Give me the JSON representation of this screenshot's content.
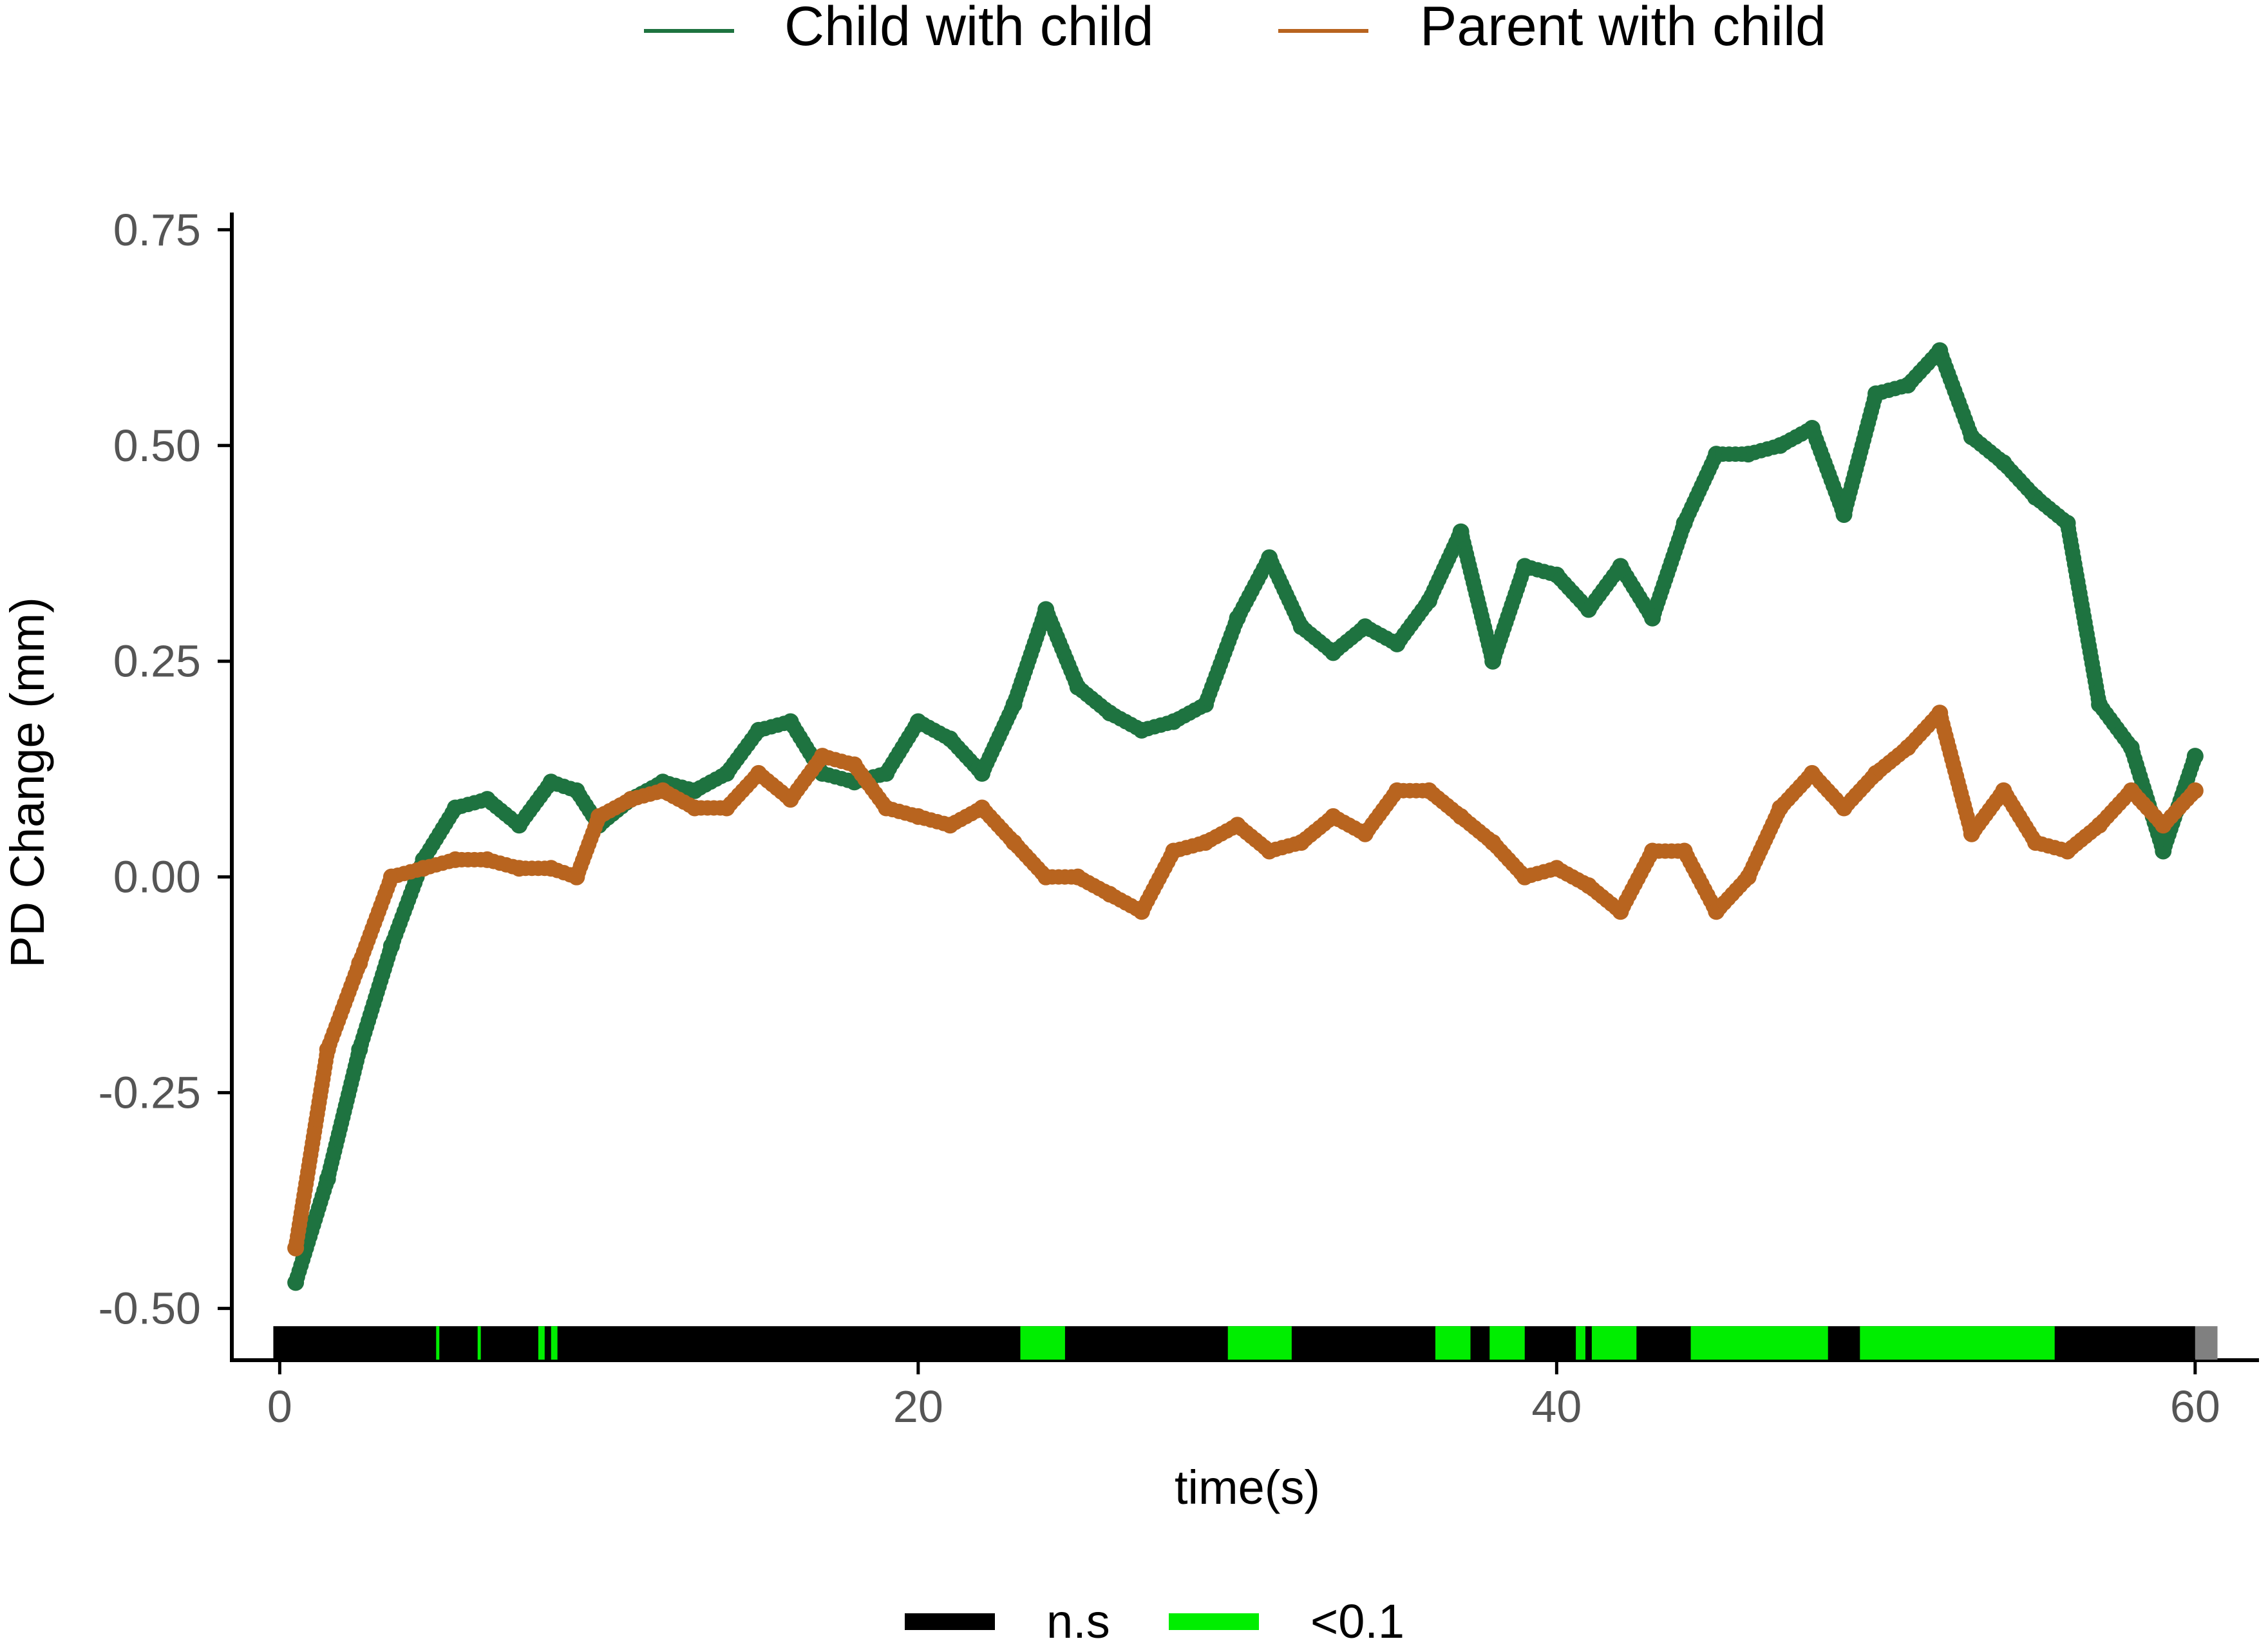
{
  "chart_data": {
    "type": "scatter",
    "title": "",
    "xlabel": "time(s)",
    "ylabel": "PD Change (mm)",
    "xlim": [
      -1.5,
      62
    ],
    "ylim": [
      -0.56,
      0.77
    ],
    "x_ticks": [
      0,
      20,
      40,
      60
    ],
    "y_ticks": [
      -0.5,
      -0.25,
      0.0,
      0.25,
      0.5,
      0.75
    ],
    "y_tick_labels": [
      "-0.50",
      "-0.25",
      "0.00",
      "0.25",
      "0.50",
      "0.75"
    ],
    "grid": false,
    "legend_position": "top",
    "series": [
      {
        "name": "Child with child",
        "color": "#1e7340",
        "points": [
          [
            0.5,
            -0.47
          ],
          [
            1.5,
            -0.35
          ],
          [
            2.5,
            -0.2
          ],
          [
            3.5,
            -0.08
          ],
          [
            4.5,
            0.02
          ],
          [
            5.5,
            0.08
          ],
          [
            6.5,
            0.09
          ],
          [
            7.5,
            0.06
          ],
          [
            8.5,
            0.11
          ],
          [
            9.3,
            0.1
          ],
          [
            10,
            0.06
          ],
          [
            11,
            0.09
          ],
          [
            12,
            0.11
          ],
          [
            13,
            0.1
          ],
          [
            14,
            0.12
          ],
          [
            15,
            0.17
          ],
          [
            16,
            0.18
          ],
          [
            17,
            0.12
          ],
          [
            18,
            0.11
          ],
          [
            19,
            0.12
          ],
          [
            20,
            0.18
          ],
          [
            21,
            0.16
          ],
          [
            22,
            0.12
          ],
          [
            23,
            0.2
          ],
          [
            24,
            0.31
          ],
          [
            25,
            0.22
          ],
          [
            26,
            0.19
          ],
          [
            27,
            0.17
          ],
          [
            28,
            0.18
          ],
          [
            29,
            0.2
          ],
          [
            30,
            0.3
          ],
          [
            31,
            0.37
          ],
          [
            32,
            0.29
          ],
          [
            33,
            0.26
          ],
          [
            34,
            0.29
          ],
          [
            35,
            0.27
          ],
          [
            36,
            0.32
          ],
          [
            37,
            0.4
          ],
          [
            38,
            0.25
          ],
          [
            39,
            0.36
          ],
          [
            40,
            0.35
          ],
          [
            41,
            0.31
          ],
          [
            42,
            0.36
          ],
          [
            43,
            0.3
          ],
          [
            44,
            0.41
          ],
          [
            45,
            0.49
          ],
          [
            46,
            0.49
          ],
          [
            47,
            0.5
          ],
          [
            48,
            0.52
          ],
          [
            49,
            0.42
          ],
          [
            50,
            0.56
          ],
          [
            51,
            0.57
          ],
          [
            52,
            0.61
          ],
          [
            53,
            0.51
          ],
          [
            54,
            0.48
          ],
          [
            55,
            0.44
          ],
          [
            56,
            0.41
          ],
          [
            57,
            0.2
          ],
          [
            58,
            0.15
          ],
          [
            59,
            0.03
          ],
          [
            60,
            0.14
          ]
        ]
      },
      {
        "name": "Parent with child",
        "color": "#b8641f",
        "points": [
          [
            0.5,
            -0.43
          ],
          [
            1.5,
            -0.2
          ],
          [
            2.5,
            -0.1
          ],
          [
            3.5,
            0.0
          ],
          [
            4.5,
            0.01
          ],
          [
            5.5,
            0.02
          ],
          [
            6.5,
            0.02
          ],
          [
            7.5,
            0.01
          ],
          [
            8.5,
            0.01
          ],
          [
            9.3,
            0.0
          ],
          [
            10,
            0.07
          ],
          [
            11,
            0.09
          ],
          [
            12,
            0.1
          ],
          [
            13,
            0.08
          ],
          [
            14,
            0.08
          ],
          [
            15,
            0.12
          ],
          [
            16,
            0.09
          ],
          [
            17,
            0.14
          ],
          [
            18,
            0.13
          ],
          [
            19,
            0.08
          ],
          [
            20,
            0.07
          ],
          [
            21,
            0.06
          ],
          [
            22,
            0.08
          ],
          [
            23,
            0.04
          ],
          [
            24,
            0.0
          ],
          [
            25,
            0.0
          ],
          [
            26,
            -0.02
          ],
          [
            27,
            -0.04
          ],
          [
            28,
            0.03
          ],
          [
            29,
            0.04
          ],
          [
            30,
            0.06
          ],
          [
            31,
            0.03
          ],
          [
            32,
            0.04
          ],
          [
            33,
            0.07
          ],
          [
            34,
            0.05
          ],
          [
            35,
            0.1
          ],
          [
            36,
            0.1
          ],
          [
            37,
            0.07
          ],
          [
            38,
            0.04
          ],
          [
            39,
            0.0
          ],
          [
            40,
            0.01
          ],
          [
            41,
            -0.01
          ],
          [
            42,
            -0.04
          ],
          [
            43,
            0.03
          ],
          [
            44,
            0.03
          ],
          [
            45,
            -0.04
          ],
          [
            46,
            0.0
          ],
          [
            47,
            0.08
          ],
          [
            48,
            0.12
          ],
          [
            49,
            0.08
          ],
          [
            50,
            0.12
          ],
          [
            51,
            0.15
          ],
          [
            52,
            0.19
          ],
          [
            53,
            0.05
          ],
          [
            54,
            0.1
          ],
          [
            55,
            0.04
          ],
          [
            56,
            0.03
          ],
          [
            57,
            0.06
          ],
          [
            58,
            0.1
          ],
          [
            59,
            0.06
          ],
          [
            60,
            0.1
          ]
        ]
      }
    ],
    "significance_bar": {
      "y": -0.54,
      "categories": [
        {
          "label": "n.s",
          "color": "#000000"
        },
        {
          "label": "<0.1",
          "color": "#00ee00"
        }
      ],
      "extent": [
        -0.2,
        60
      ],
      "end_cap_color": "#808080",
      "green_segments": [
        [
          4.9,
          5.0
        ],
        [
          6.2,
          6.3
        ],
        [
          8.1,
          8.3
        ],
        [
          8.5,
          8.7
        ],
        [
          23.2,
          24.6
        ],
        [
          29.7,
          31.7
        ],
        [
          36.2,
          37.3
        ],
        [
          37.9,
          39.0
        ],
        [
          40.6,
          40.9
        ],
        [
          41.1,
          42.5
        ],
        [
          44.2,
          48.5
        ],
        [
          49.5,
          55.6
        ]
      ]
    }
  }
}
